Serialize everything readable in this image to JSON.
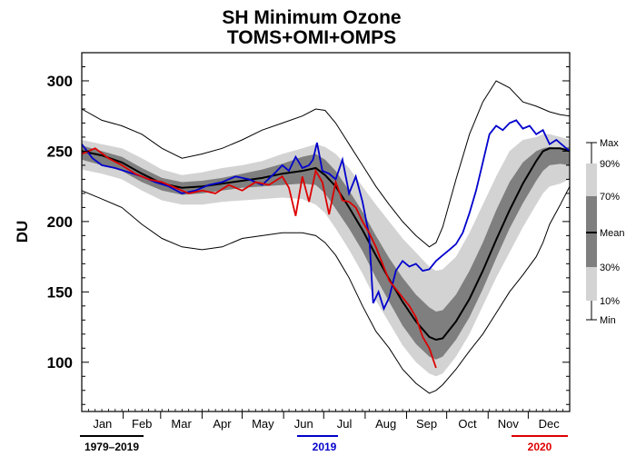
{
  "chart_data": {
    "type": "area",
    "title": "SH Minimum Ozone",
    "subtitle": "TOMS+OMI+OMPS",
    "ylabel": "DU",
    "xlabel": "",
    "xlim": [
      0,
      365
    ],
    "ylim": [
      65,
      320
    ],
    "yticks": [
      100,
      150,
      200,
      250,
      300
    ],
    "months": [
      "Jan",
      "Feb",
      "Mar",
      "Apr",
      "May",
      "Jun",
      "Jul",
      "Aug",
      "Sep",
      "Oct",
      "Nov",
      "Dec"
    ],
    "month_days": [
      0,
      31,
      59,
      90,
      120,
      151,
      181,
      212,
      243,
      273,
      304,
      334
    ],
    "climatology": {
      "period": "1979–2019",
      "day": [
        0,
        15,
        30,
        45,
        60,
        75,
        90,
        105,
        120,
        135,
        150,
        165,
        175,
        182,
        190,
        200,
        210,
        220,
        230,
        240,
        250,
        260,
        265,
        270,
        280,
        290,
        300,
        310,
        320,
        330,
        340,
        345,
        350,
        358,
        365
      ],
      "max": [
        280,
        272,
        268,
        262,
        252,
        245,
        248,
        252,
        258,
        265,
        270,
        275,
        280,
        279,
        270,
        255,
        240,
        225,
        212,
        200,
        190,
        182,
        185,
        196,
        230,
        262,
        285,
        300,
        295,
        285,
        282,
        280,
        278,
        276,
        275
      ],
      "p90": [
        258,
        255,
        252,
        245,
        237,
        233,
        235,
        238,
        240,
        243,
        248,
        252,
        255,
        253,
        248,
        238,
        225,
        212,
        200,
        188,
        178,
        168,
        165,
        166,
        175,
        192,
        212,
        232,
        250,
        258,
        260,
        262,
        262,
        260,
        258
      ],
      "p70": [
        254,
        250,
        246,
        238,
        231,
        228,
        229,
        231,
        234,
        237,
        241,
        246,
        248,
        244,
        236,
        222,
        207,
        190,
        174,
        160,
        148,
        139,
        136,
        137,
        148,
        165,
        185,
        208,
        228,
        242,
        250,
        252,
        253,
        252,
        253
      ],
      "mean": [
        250,
        247,
        242,
        234,
        227,
        224,
        225,
        227,
        229,
        231,
        234,
        236,
        238,
        233,
        225,
        210,
        194,
        176,
        159,
        143,
        129,
        118,
        116,
        117,
        129,
        145,
        165,
        187,
        208,
        227,
        243,
        250,
        252,
        252,
        250
      ],
      "p30": [
        244,
        240,
        236,
        228,
        222,
        219,
        220,
        222,
        224,
        225,
        226,
        227,
        226,
        220,
        209,
        195,
        179,
        160,
        143,
        126,
        113,
        104,
        102,
        104,
        116,
        132,
        152,
        174,
        195,
        213,
        229,
        236,
        240,
        241,
        240
      ],
      "p10": [
        237,
        234,
        230,
        222,
        215,
        212,
        212,
        214,
        215,
        216,
        217,
        216,
        212,
        206,
        195,
        180,
        163,
        144,
        128,
        112,
        100,
        92,
        90,
        92,
        104,
        120,
        140,
        160,
        178,
        196,
        212,
        220,
        225,
        227,
        230
      ],
      "min": [
        222,
        216,
        210,
        198,
        188,
        182,
        180,
        182,
        188,
        190,
        192,
        192,
        190,
        185,
        176,
        160,
        140,
        122,
        110,
        95,
        85,
        78,
        80,
        84,
        95,
        108,
        120,
        135,
        150,
        162,
        175,
        185,
        198,
        212,
        225
      ]
    },
    "series": [
      {
        "name": "2019",
        "color": "#0000cc",
        "x": [
          0,
          8,
          15,
          25,
          35,
          45,
          55,
          65,
          75,
          85,
          95,
          105,
          115,
          125,
          135,
          145,
          150,
          155,
          160,
          165,
          170,
          173,
          176,
          180,
          185,
          190,
          195,
          200,
          205,
          210,
          215,
          218,
          222,
          226,
          230,
          235,
          240,
          245,
          250,
          255,
          260,
          265,
          270,
          275,
          280,
          285,
          290,
          295,
          300,
          305,
          310,
          315,
          320,
          325,
          330,
          335,
          340,
          345,
          350,
          355,
          360,
          365
        ],
        "y": [
          255,
          245,
          240,
          238,
          235,
          232,
          228,
          225,
          220,
          222,
          226,
          228,
          232,
          230,
          226,
          235,
          240,
          236,
          246,
          238,
          240,
          244,
          256,
          236,
          234,
          230,
          244,
          220,
          232,
          214,
          190,
          142,
          150,
          138,
          146,
          165,
          172,
          168,
          170,
          165,
          166,
          172,
          176,
          180,
          184,
          192,
          206,
          222,
          242,
          262,
          268,
          265,
          270,
          272,
          266,
          268,
          262,
          265,
          255,
          258,
          254,
          250
        ]
      },
      {
        "name": "2020",
        "color": "#dd0000",
        "x": [
          0,
          10,
          20,
          30,
          40,
          50,
          60,
          70,
          80,
          90,
          100,
          110,
          120,
          130,
          140,
          150,
          155,
          160,
          165,
          170,
          175,
          180,
          185,
          190,
          195,
          200,
          205,
          210,
          215,
          220,
          225,
          230,
          235,
          240,
          245,
          250,
          255,
          260,
          265
        ],
        "y": [
          248,
          252,
          245,
          240,
          234,
          230,
          228,
          224,
          220,
          222,
          220,
          226,
          222,
          228,
          226,
          232,
          224,
          204,
          232,
          214,
          236,
          228,
          205,
          228,
          215,
          214,
          210,
          200,
          192,
          182,
          170,
          158,
          152,
          146,
          140,
          132,
          118,
          110,
          96
        ]
      }
    ],
    "legend_key": {
      "labels": [
        "Max",
        "90%",
        "70%",
        "Mean",
        "30%",
        "10%",
        "Min"
      ],
      "colors": {
        "outer_band": "#d3d3d3",
        "mid_band": "#b3b3b3",
        "inner_band": "#7f7f7f",
        "mean_line": "#000000",
        "minmax_line": "#000000"
      }
    },
    "legend_bottom": [
      {
        "label": "1979–2019",
        "color": "#000000"
      },
      {
        "label": "2019",
        "color": "#0000cc"
      },
      {
        "label": "2020",
        "color": "#dd0000"
      }
    ]
  }
}
